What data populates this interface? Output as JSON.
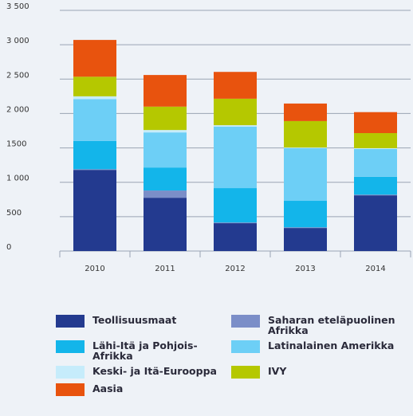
{
  "chart_data": {
    "type": "stacked-bar",
    "categories": [
      "2010",
      "2011",
      "2012",
      "2013",
      "2014"
    ],
    "series": [
      {
        "name": "Teollisuusmaat",
        "color": "#233a8f",
        "values": [
          1180,
          775,
          405,
          335,
          810
        ]
      },
      {
        "name": "Saharan eteläpuolinen Afrikka",
        "color": "#7b8ec8",
        "values": [
          10,
          105,
          10,
          10,
          10
        ]
      },
      {
        "name": "Lähi-Itä ja Pohjois-Afrikka",
        "color": "#13b5ea",
        "values": [
          410,
          335,
          500,
          385,
          260
        ]
      },
      {
        "name": "Latinalainen Amerikka",
        "color": "#6dcff6",
        "values": [
          610,
          510,
          895,
          765,
          405
        ]
      },
      {
        "name": "Keski- ja Itä-Eurooppa",
        "color": "#c6ecfb",
        "values": [
          40,
          35,
          20,
          10,
          10
        ]
      },
      {
        "name": "IVY",
        "color": "#b5c800",
        "values": [
          285,
          340,
          385,
          385,
          220
        ]
      },
      {
        "name": "Aasia",
        "color": "#e8530e",
        "values": [
          535,
          460,
          390,
          255,
          305
        ]
      }
    ],
    "ylim": [
      0,
      3500
    ],
    "yticks": [
      0,
      {
        "value": 500,
        "label": "500"
      },
      {
        "value": 1000,
        "label": "1 000"
      },
      {
        "value": 1500,
        "label": "1500"
      },
      {
        "value": 2000,
        "label": "2 000"
      },
      {
        "value": 2500,
        "label": "2 500"
      },
      {
        "value": 3000,
        "label": "3 000"
      },
      {
        "value": 3500,
        "label": "3 500"
      }
    ],
    "grid": true
  }
}
